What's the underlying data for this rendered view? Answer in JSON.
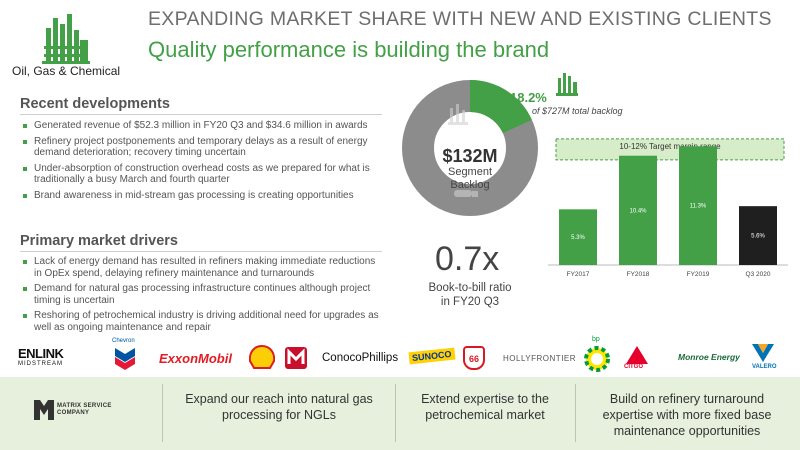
{
  "header": {
    "segment": "Oil, Gas & Chemical",
    "title": "EXPANDING MARKET SHARE WITH NEW AND EXISTING CLIENTS",
    "subtitle": "Quality performance is building the brand"
  },
  "recent_developments": {
    "heading": "Recent developments",
    "bullets": [
      "Generated revenue of $52.3 million in FY20 Q3 and $34.6 million in awards",
      "Refinery project postponements and temporary delays as a result of energy demand deterioration; recovery timing uncertain",
      "Under-absorption of construction overhead costs as we prepared for what is traditionally a busy March and fourth quarter",
      "Brand awareness in mid-stream gas processing is creating opportunities"
    ]
  },
  "market_drivers": {
    "heading": "Primary market drivers",
    "bullets": [
      "Lack of energy demand has resulted in refiners making immediate reductions in OpEx spend, delaying refinery maintenance and turnarounds",
      "Demand for natural gas processing infrastructure continues although project timing is uncertain",
      "Reshoring of petrochemical industry is driving additional need for upgrades as well as ongoing maintenance and repair"
    ]
  },
  "backlog": {
    "amount": "$132M",
    "line1": "Segment",
    "line2": "Backlog",
    "pct_label": "18.2%",
    "note": "of $727M total backlog",
    "share": 0.182
  },
  "ratio": {
    "value": "0.7x",
    "label1": "Book-to-bill ratio",
    "label2": "in FY20 Q3"
  },
  "chart_data": {
    "type": "bar",
    "categories": [
      "FY2017",
      "FY2018",
      "FY2019",
      "Q3 2020"
    ],
    "values": [
      5.3,
      10.4,
      11.3,
      5.6
    ],
    "data_labels": [
      "5.3%",
      "10.4%",
      "11.3%",
      "5.6%"
    ],
    "target_range": [
      10,
      12
    ],
    "target_label": "10-12% Target margin range",
    "ylim": [
      0,
      13.8
    ],
    "colors": {
      "bar": "#43a047",
      "last_bar": "#1f1f1f",
      "target": "#d7ecc8"
    }
  },
  "logos": [
    "EnLink Midstream",
    "Chevron",
    "ExxonMobil",
    "Shell",
    "Marathon",
    "ConocoPhillips",
    "Sunoco",
    "Phillips 66",
    "HollyFrontier",
    "bp",
    "CITGO",
    "Monroe Energy",
    "Valero"
  ],
  "logo_text": {
    "enlink": "ENLINK",
    "enlink_sub": "MIDSTREAM",
    "chevron": "Chevron",
    "exxon": "ExxonMobil",
    "conoco": "ConocoPhillips",
    "sunoco": "SUNOCO",
    "p66": "66",
    "holly": "HOLLYFRONTIER",
    "bp": "bp",
    "citgo": "CITGO",
    "monroe": "Monroe Energy",
    "valero": "VALERO"
  },
  "footer": {
    "company_line1": "MATRIX SERVICE",
    "company_line2": "COMPANY",
    "goals": [
      "Expand our reach into natural gas processing for NGLs",
      "Extend expertise to the petrochemical market",
      "Build on refinery turnaround expertise with more fixed base maintenance opportunities"
    ]
  },
  "colors": {
    "accent": "#43a047",
    "donut_grey": "#8c8c8c",
    "bottom_bg": "#e6f0dc"
  }
}
